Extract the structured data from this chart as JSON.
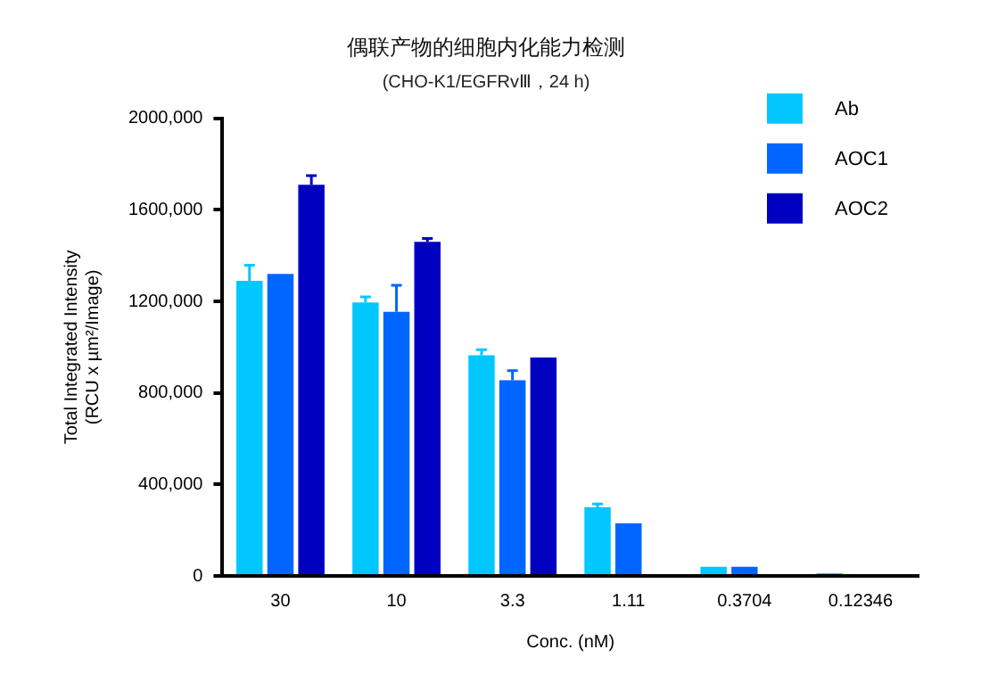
{
  "chart_data": {
    "type": "bar",
    "title": "偶联产物的细胞内化能力检测",
    "subtitle": "(CHO-K1/EGFRvⅢ，24 h)",
    "xlabel": "Conc. (nM)",
    "ylabel": "Total Integrated Intensity\n(RCU x µm²/Image)",
    "categories": [
      "30",
      "10",
      "3.3",
      "1.11",
      "0.3704",
      "0.12346"
    ],
    "series": [
      {
        "name": "Ab",
        "color": "#00c8ff",
        "values": [
          1290000,
          1195000,
          965000,
          300000,
          40000,
          12000
        ],
        "errors": [
          [
            1290000,
            1358000
          ],
          [
            1195000,
            1220000
          ],
          [
            965000,
            989000
          ],
          [
            300000,
            315000
          ],
          null,
          null
        ]
      },
      {
        "name": "AOC1",
        "color": "#0066ff",
        "values": [
          1320000,
          1155000,
          855000,
          230000,
          40000,
          null
        ],
        "errors": [
          null,
          [
            1155000,
            1270000
          ],
          [
            855000,
            897000
          ],
          null,
          null,
          null
        ]
      },
      {
        "name": "AOC2",
        "color": "#0000c0",
        "values": [
          1710000,
          1460000,
          955000,
          null,
          null,
          null
        ],
        "errors": [
          [
            1710000,
            1750000
          ],
          [
            1460000,
            1475000
          ],
          null,
          null,
          null,
          null
        ]
      }
    ],
    "ylim": [
      0,
      2000000
    ],
    "yticks": [
      {
        "value": 0,
        "label": "0"
      },
      {
        "value": 400000,
        "label": "400,000"
      },
      {
        "value": 800000,
        "label": "800,000"
      },
      {
        "value": 1200000,
        "label": "1200,000"
      },
      {
        "value": 1600000,
        "label": "1600,000"
      },
      {
        "value": 2000000,
        "label": "2000,000"
      }
    ],
    "grid": false,
    "legend": "top right"
  }
}
